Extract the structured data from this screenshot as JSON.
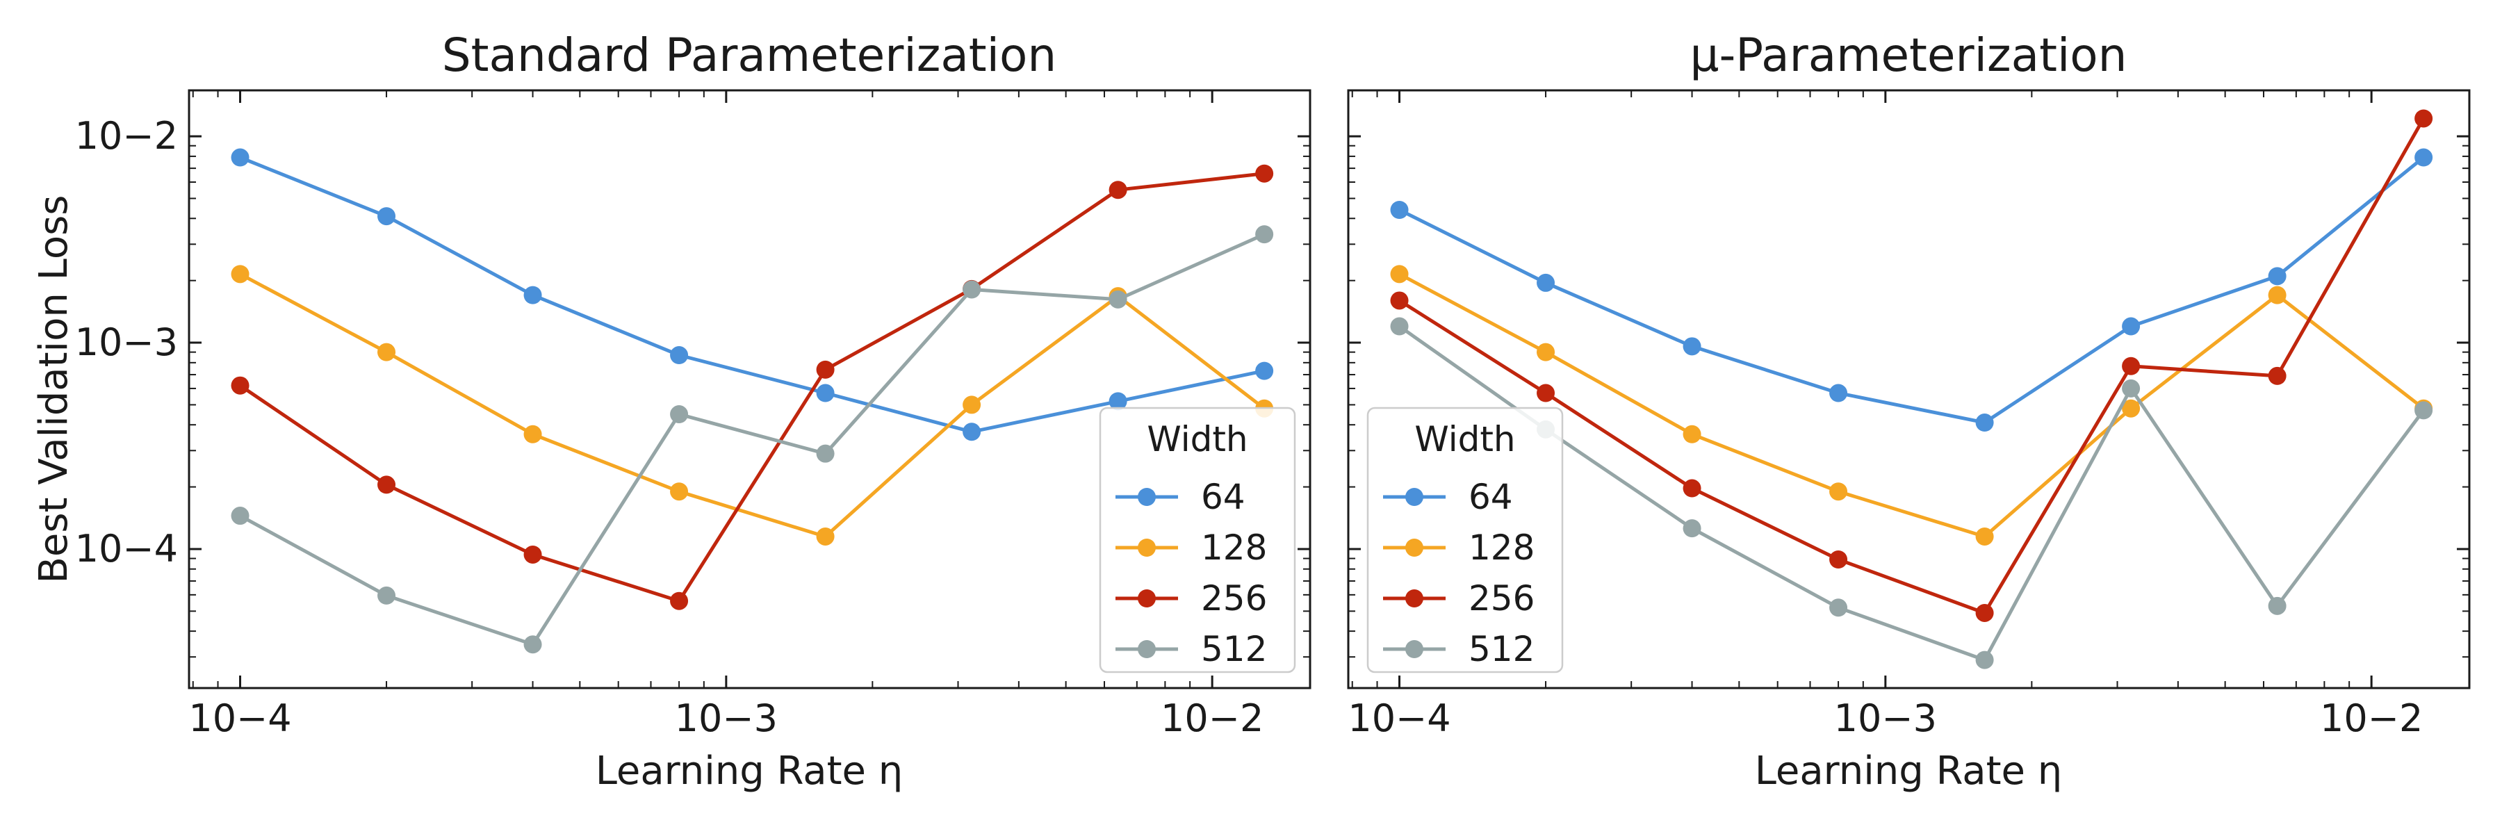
{
  "colors": {
    "64": "#4a90d9",
    "128": "#f5a623",
    "256": "#c0260d",
    "512": "#95a5a6"
  },
  "chart_data": [
    {
      "type": "line",
      "title": "Standard Parameterization",
      "xlabel": "Learning Rate η",
      "ylabel": "Best Validation Loss",
      "xscale": "log",
      "yscale": "log",
      "xlim": [
        7.85e-05,
        0.0159
      ],
      "ylim": [
        2.12e-05,
        0.0167
      ],
      "xticks": [
        0.0001,
        0.001,
        0.01
      ],
      "xtick_labels": [
        "10−4",
        "10−3",
        "10−2"
      ],
      "yticks": [
        0.0001,
        0.001,
        0.01
      ],
      "ytick_labels": [
        "10−4",
        "10−3",
        "10−2"
      ],
      "legend_title": "Width",
      "legend_location": "lower-right",
      "x": [
        0.0001,
        0.0002,
        0.0004,
        0.0008,
        0.0016,
        0.0032,
        0.0064,
        0.0128
      ],
      "series": [
        {
          "name": "64",
          "values": [
            0.0079,
            0.0041,
            0.0017,
            0.00087,
            0.00057,
            0.00037,
            0.00052,
            0.00073
          ]
        },
        {
          "name": "128",
          "values": [
            0.00215,
            0.0009,
            0.00036,
            0.00019,
            0.000115,
            0.0005,
            0.00168,
            0.00048
          ]
        },
        {
          "name": "256",
          "values": [
            0.00062,
            0.000205,
            9.4e-05,
            5.6e-05,
            0.00074,
            0.00182,
            0.0055,
            0.0066
          ]
        },
        {
          "name": "512",
          "values": [
            0.000145,
            5.95e-05,
            3.45e-05,
            0.00045,
            0.00029,
            0.00181,
            0.00162,
            0.00335
          ]
        }
      ]
    },
    {
      "type": "line",
      "title": "μ-Parameterization",
      "xlabel": "Learning Rate η",
      "ylabel": "",
      "xscale": "log",
      "yscale": "log",
      "xlim": [
        7.85e-05,
        0.0159
      ],
      "ylim": [
        2.12e-05,
        0.0167
      ],
      "xticks": [
        0.0001,
        0.001,
        0.01
      ],
      "xtick_labels": [
        "10−4",
        "10−3",
        "10−2"
      ],
      "yticks": [
        0.0001,
        0.001,
        0.01
      ],
      "ytick_labels": [
        "",
        "",
        ""
      ],
      "legend_title": "Width",
      "legend_location": "lower-left",
      "x": [
        0.0001,
        0.0002,
        0.0004,
        0.0008,
        0.0016,
        0.0032,
        0.0064,
        0.0128
      ],
      "series": [
        {
          "name": "64",
          "values": [
            0.0044,
            0.00195,
            0.00096,
            0.00057,
            0.00041,
            0.0012,
            0.0021,
            0.0079
          ]
        },
        {
          "name": "128",
          "values": [
            0.00215,
            0.0009,
            0.00036,
            0.00019,
            0.000115,
            0.00048,
            0.0017,
            0.00048
          ]
        },
        {
          "name": "256",
          "values": [
            0.0016,
            0.00057,
            0.000197,
            8.9e-05,
            4.9e-05,
            0.00077,
            0.00069,
            0.0122
          ]
        },
        {
          "name": "512",
          "values": [
            0.0012,
            0.00038,
            0.000126,
            5.2e-05,
            2.9e-05,
            0.0006,
            5.3e-05,
            0.00047
          ]
        }
      ]
    }
  ]
}
